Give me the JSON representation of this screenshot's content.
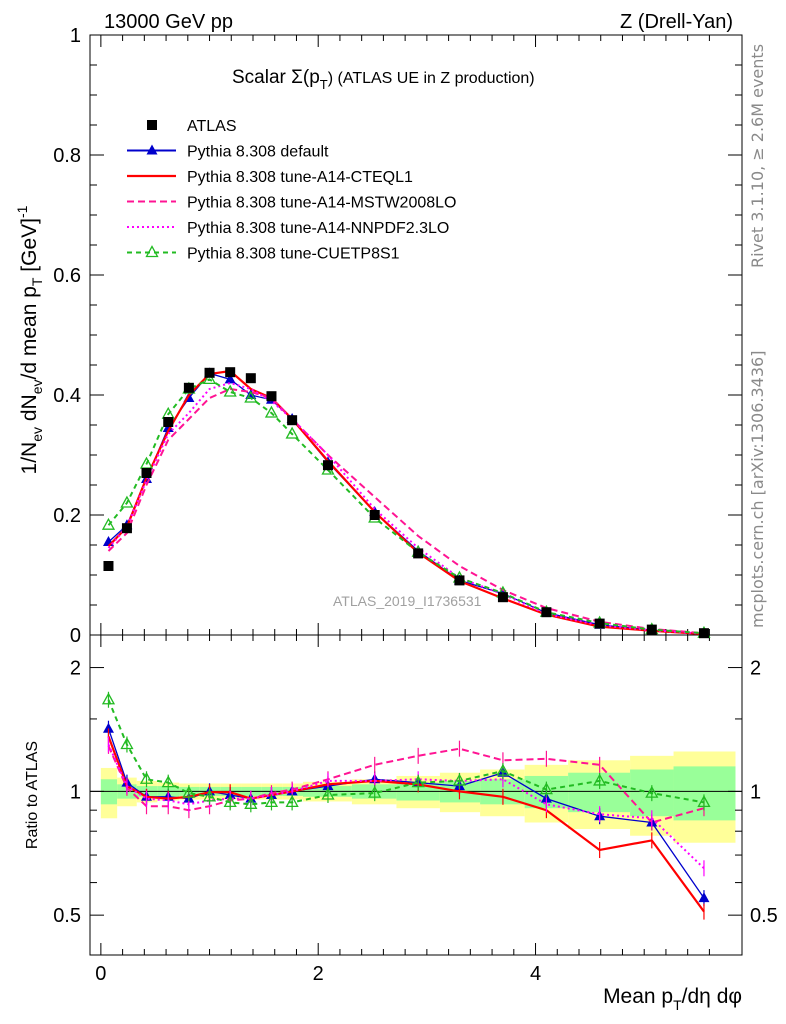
{
  "header": {
    "left": "13000 GeV pp",
    "right": "Z (Drell-Yan)"
  },
  "side_text": {
    "rivet": "Rivet 3.1.10, ≥ 2.6M events",
    "source": "mcplots.cern.ch [arXiv:1306.3436]"
  },
  "watermark": "ATLAS_2019_I1736531",
  "colors": {
    "atlas": "#000000",
    "default": "#0000cc",
    "cteql1": "#ff0000",
    "mstw": "#ff1493",
    "nnpdf": "#ff00ff",
    "cuetp8s1": "#22bb22",
    "band_inner": "#99ff99",
    "band_outer": "#ffff99"
  },
  "chart_data": [
    {
      "type": "line",
      "title": "Scalar Σ(pT) (ATLAS UE in Z production)",
      "title_parts": {
        "before": "Scalar Σ(p",
        "sub": "T",
        "after": ") (ATLAS UE in Z production)"
      },
      "ylabel": "1/Nev dNev/d mean pT [GeV]-1",
      "ylabel_parts": [
        "1/N",
        "ev",
        " dN",
        "ev",
        "/d mean p",
        "T",
        " [GeV]",
        "-1"
      ],
      "xlim": [
        -0.1,
        5.9
      ],
      "ylim": [
        0,
        1
      ],
      "yticks": [
        0,
        0.2,
        0.4,
        0.6,
        0.8,
        1
      ],
      "ytick_labels": [
        "0",
        "0.2",
        "0.4",
        "0.6",
        "0.8",
        "1"
      ],
      "legend_position": "top-left",
      "x": [
        0.07,
        0.24,
        0.42,
        0.62,
        0.81,
        1.0,
        1.19,
        1.38,
        1.57,
        1.76,
        2.09,
        2.52,
        2.92,
        3.3,
        3.7,
        4.1,
        4.59,
        5.07,
        5.55
      ],
      "series": [
        {
          "name": "ATLAS",
          "key": "atlas",
          "marker": "square",
          "values": [
            0.115,
            0.178,
            0.27,
            0.355,
            0.412,
            0.437,
            0.438,
            0.428,
            0.398,
            0.358,
            0.283,
            0.2,
            0.136,
            0.091,
            0.063,
            0.038,
            0.019,
            0.009,
            0.003
          ]
        },
        {
          "name": "Pythia 8.308 default",
          "key": "default",
          "marker": "triangle-filled",
          "dash": "",
          "values": [
            0.155,
            0.183,
            0.26,
            0.345,
            0.395,
            0.436,
            0.426,
            0.4,
            0.392,
            0.36,
            0.288,
            0.205,
            0.14,
            0.091,
            0.069,
            0.037,
            0.017,
            0.008,
            0.0018
          ]
        },
        {
          "name": "Pythia 8.308 tune-A14-CTEQL1",
          "key": "cteql1",
          "marker": "none",
          "dash": "",
          "values": [
            0.148,
            0.18,
            0.262,
            0.34,
            0.4,
            0.435,
            0.44,
            0.41,
            0.395,
            0.36,
            0.29,
            0.205,
            0.137,
            0.09,
            0.061,
            0.034,
            0.014,
            0.007,
            0.0016
          ]
        },
        {
          "name": "Pythia 8.308 tune-A14-MSTW2008LO",
          "key": "mstw",
          "marker": "none",
          "dash": "7,4",
          "values": [
            0.14,
            0.17,
            0.25,
            0.325,
            0.36,
            0.395,
            0.41,
            0.405,
            0.395,
            0.36,
            0.3,
            0.23,
            0.165,
            0.115,
            0.075,
            0.045,
            0.022,
            0.01,
            0.003
          ]
        },
        {
          "name": "Pythia 8.308 tune-A14-NNPDF2.3LO",
          "key": "nnpdf",
          "marker": "none",
          "dash": "2,3",
          "values": [
            0.145,
            0.18,
            0.258,
            0.335,
            0.37,
            0.41,
            0.42,
            0.41,
            0.39,
            0.36,
            0.3,
            0.21,
            0.145,
            0.095,
            0.068,
            0.035,
            0.016,
            0.008,
            0.002
          ]
        },
        {
          "name": "Pythia 8.308 tune-CUETP8S1",
          "key": "cuetp8s1",
          "marker": "triangle-open",
          "dash": "5,4",
          "values": [
            0.183,
            0.22,
            0.285,
            0.368,
            0.41,
            0.426,
            0.405,
            0.395,
            0.37,
            0.335,
            0.275,
            0.195,
            0.138,
            0.095,
            0.07,
            0.038,
            0.02,
            0.009,
            0.003
          ]
        }
      ]
    },
    {
      "type": "line",
      "xlabel": "Mean pT/dη dφ",
      "xlabel_parts": [
        "Mean p",
        "T",
        "/dη dφ"
      ],
      "ylabel": "Ratio to ATLAS",
      "ylim": [
        0.4,
        2.4
      ],
      "yscale": "log",
      "xticks": [
        0,
        2,
        4
      ],
      "xtick_labels": [
        "0",
        "2",
        "4"
      ],
      "yticks": [
        0.5,
        1,
        2
      ],
      "ytick_labels": [
        "0.5",
        "1",
        "2"
      ],
      "x": [
        0.07,
        0.24,
        0.42,
        0.62,
        0.81,
        1.0,
        1.19,
        1.38,
        1.57,
        1.76,
        2.09,
        2.52,
        2.92,
        3.3,
        3.7,
        4.1,
        4.59,
        5.07,
        5.55
      ],
      "bin_edges": [
        0,
        0.15,
        0.33,
        0.52,
        0.72,
        0.91,
        1.1,
        1.29,
        1.48,
        1.67,
        1.86,
        2.31,
        2.72,
        3.12,
        3.49,
        3.9,
        4.3,
        4.87,
        5.27,
        5.84
      ],
      "band_inner": [
        0.07,
        0.04,
        0.03,
        0.03,
        0.025,
        0.025,
        0.025,
        0.025,
        0.025,
        0.025,
        0.03,
        0.04,
        0.05,
        0.06,
        0.07,
        0.09,
        0.11,
        0.13,
        0.15
      ],
      "band_outer": [
        0.14,
        0.08,
        0.06,
        0.05,
        0.045,
        0.045,
        0.045,
        0.045,
        0.045,
        0.045,
        0.055,
        0.07,
        0.09,
        0.11,
        0.13,
        0.16,
        0.19,
        0.22,
        0.25
      ],
      "series": [
        {
          "name": "Pythia 8.308 default",
          "key": "default",
          "marker": "triangle-filled",
          "dash": "",
          "values": [
            1.42,
            1.05,
            0.97,
            0.97,
            0.96,
            1.0,
            0.98,
            0.96,
            0.98,
            1.0,
            1.03,
            1.07,
            1.05,
            1.03,
            1.11,
            0.96,
            0.87,
            0.84,
            0.55
          ]
        },
        {
          "name": "Pythia 8.308 tune-A14-CTEQL1",
          "key": "cteql1",
          "marker": "none",
          "dash": "",
          "values": [
            1.36,
            1.03,
            0.97,
            0.96,
            0.97,
            0.995,
            0.995,
            0.96,
            0.98,
            1.0,
            1.04,
            1.06,
            1.04,
            1.0,
            0.97,
            0.9,
            0.72,
            0.76,
            0.51
          ]
        },
        {
          "name": "Pythia 8.308 tune-A14-MSTW2008LO",
          "key": "mstw",
          "marker": "none",
          "dash": "7,4",
          "values": [
            1.29,
            1.02,
            0.92,
            0.92,
            0.9,
            0.92,
            0.95,
            0.96,
            0.99,
            1.01,
            1.07,
            1.16,
            1.22,
            1.27,
            1.19,
            1.2,
            1.16,
            0.84,
            0.91
          ]
        },
        {
          "name": "Pythia 8.308 tune-A14-NNPDF2.3LO",
          "key": "nnpdf",
          "marker": "none",
          "dash": "2,3",
          "values": [
            1.3,
            1.03,
            0.96,
            0.95,
            0.93,
            0.95,
            0.96,
            0.96,
            0.98,
            1.0,
            1.06,
            1.06,
            1.07,
            1.06,
            1.07,
            0.93,
            0.88,
            0.86,
            0.65
          ]
        },
        {
          "name": "Pythia 8.308 tune-CUETP8S1",
          "key": "cuetp8s1",
          "marker": "triangle-open",
          "dash": "5,4",
          "values": [
            1.67,
            1.3,
            1.07,
            1.05,
            0.99,
            0.97,
            0.94,
            0.93,
            0.94,
            0.94,
            0.98,
            0.99,
            1.05,
            1.06,
            1.12,
            1.01,
            1.06,
            0.99,
            0.94
          ]
        }
      ]
    }
  ]
}
